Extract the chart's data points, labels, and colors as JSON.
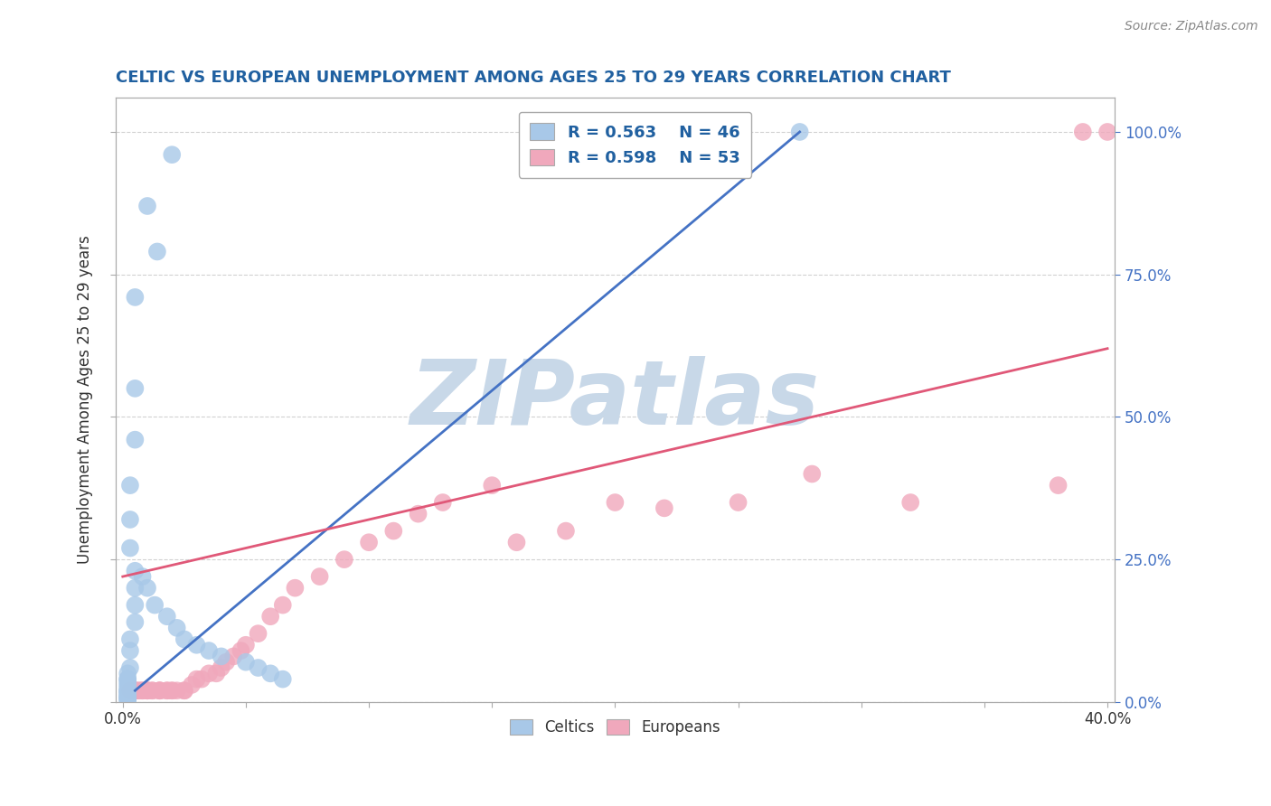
{
  "title": "CELTIC VS EUROPEAN UNEMPLOYMENT AMONG AGES 25 TO 29 YEARS CORRELATION CHART",
  "source": "Source: ZipAtlas.com",
  "ylabel": "Unemployment Among Ages 25 to 29 years",
  "y_ticks_right": [
    "0.0%",
    "25.0%",
    "50.0%",
    "75.0%",
    "100.0%"
  ],
  "celtics_R": "0.563",
  "celtics_N": "46",
  "europeans_R": "0.598",
  "europeans_N": "53",
  "celtic_color": "#A8C8E8",
  "european_color": "#F0A8BC",
  "celtic_line_color": "#4472C4",
  "european_line_color": "#E05878",
  "watermark": "ZIPatlas",
  "watermark_color": "#C8D8E8",
  "background_color": "#FFFFFF",
  "grid_color": "#CCCCCC",
  "title_color": "#2060A0",
  "legend_text_color": "#2060A0",
  "celtics_x": [
    0.02,
    0.01,
    0.014,
    0.005,
    0.005,
    0.005,
    0.003,
    0.003,
    0.003,
    0.005,
    0.005,
    0.005,
    0.005,
    0.003,
    0.003,
    0.003,
    0.002,
    0.002,
    0.002,
    0.002,
    0.002,
    0.002,
    0.002,
    0.002,
    0.002,
    0.002,
    0.002,
    0.002,
    0.002,
    0.002,
    0.002,
    0.002,
    0.008,
    0.01,
    0.013,
    0.018,
    0.022,
    0.025,
    0.03,
    0.035,
    0.04,
    0.05,
    0.055,
    0.06,
    0.275,
    0.065
  ],
  "celtics_y": [
    0.96,
    0.87,
    0.79,
    0.71,
    0.55,
    0.46,
    0.38,
    0.32,
    0.27,
    0.23,
    0.2,
    0.17,
    0.14,
    0.11,
    0.09,
    0.06,
    0.05,
    0.04,
    0.04,
    0.035,
    0.03,
    0.025,
    0.02,
    0.02,
    0.018,
    0.015,
    0.012,
    0.01,
    0.008,
    0.006,
    0.005,
    0.003,
    0.22,
    0.2,
    0.17,
    0.15,
    0.13,
    0.11,
    0.1,
    0.09,
    0.08,
    0.07,
    0.06,
    0.05,
    1.0,
    0.04
  ],
  "europeans_x": [
    0.003,
    0.005,
    0.005,
    0.006,
    0.007,
    0.008,
    0.008,
    0.01,
    0.01,
    0.01,
    0.012,
    0.012,
    0.015,
    0.015,
    0.015,
    0.018,
    0.018,
    0.02,
    0.02,
    0.022,
    0.025,
    0.025,
    0.028,
    0.03,
    0.032,
    0.035,
    0.038,
    0.04,
    0.042,
    0.045,
    0.048,
    0.05,
    0.055,
    0.06,
    0.065,
    0.07,
    0.08,
    0.09,
    0.1,
    0.11,
    0.12,
    0.13,
    0.15,
    0.16,
    0.18,
    0.2,
    0.22,
    0.25,
    0.28,
    0.32,
    0.38,
    0.39,
    0.4
  ],
  "europeans_y": [
    0.02,
    0.02,
    0.02,
    0.02,
    0.02,
    0.02,
    0.02,
    0.02,
    0.02,
    0.02,
    0.02,
    0.02,
    0.02,
    0.02,
    0.02,
    0.02,
    0.02,
    0.02,
    0.02,
    0.02,
    0.02,
    0.02,
    0.03,
    0.04,
    0.04,
    0.05,
    0.05,
    0.06,
    0.07,
    0.08,
    0.09,
    0.1,
    0.12,
    0.15,
    0.17,
    0.2,
    0.22,
    0.25,
    0.28,
    0.3,
    0.33,
    0.35,
    0.38,
    0.28,
    0.3,
    0.35,
    0.34,
    0.35,
    0.4,
    0.35,
    0.38,
    1.0,
    1.0
  ],
  "celtic_line_x1": 0.005,
  "celtic_line_y1": 0.02,
  "celtic_line_x2": 0.275,
  "celtic_line_y2": 1.0,
  "euro_line_x1": 0.0,
  "euro_line_y1": 0.22,
  "euro_line_x2": 0.4,
  "euro_line_y2": 0.62,
  "xlim": [
    0.0,
    0.4
  ],
  "ylim": [
    0.0,
    1.05
  ]
}
